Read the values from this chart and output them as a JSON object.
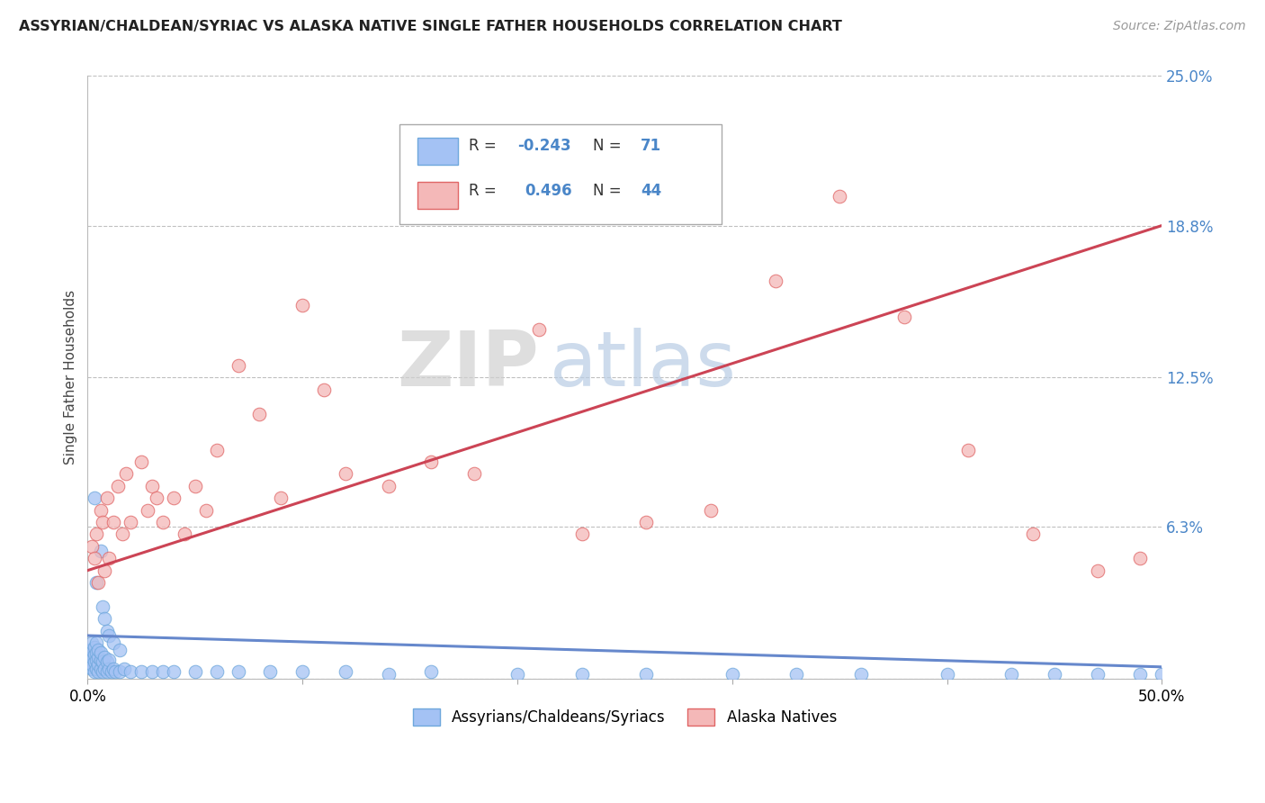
{
  "title": "ASSYRIAN/CHALDEAN/SYRIAC VS ALASKA NATIVE SINGLE FATHER HOUSEHOLDS CORRELATION CHART",
  "source": "Source: ZipAtlas.com",
  "ylabel": "Single Father Households",
  "xlim": [
    0.0,
    0.5
  ],
  "ylim": [
    0.0,
    0.25
  ],
  "ytick_labels_right": [
    "",
    "6.3%",
    "12.5%",
    "18.8%",
    "25.0%"
  ],
  "yticks_right": [
    0.0,
    0.063,
    0.125,
    0.188,
    0.25
  ],
  "legend_label1": "Assyrians/Chaldeans/Syriacs",
  "legend_label2": "Alaska Natives",
  "blue_color": "#a4c2f4",
  "pink_color": "#f4b8b8",
  "blue_edge_color": "#6fa8dc",
  "pink_edge_color": "#e06666",
  "blue_line_color": "#6688cc",
  "pink_line_color": "#cc4455",
  "watermark_color": "#c8d8ef",
  "background_color": "#ffffff",
  "grid_color": "#c0c0c0",
  "blue_line_y_start": 0.018,
  "blue_line_y_end": 0.005,
  "pink_line_y_start": 0.045,
  "pink_line_y_end": 0.188,
  "blue_scatter_x": [
    0.001,
    0.001,
    0.001,
    0.001,
    0.002,
    0.002,
    0.002,
    0.002,
    0.002,
    0.003,
    0.003,
    0.003,
    0.003,
    0.004,
    0.004,
    0.004,
    0.004,
    0.005,
    0.005,
    0.005,
    0.005,
    0.006,
    0.006,
    0.006,
    0.007,
    0.007,
    0.008,
    0.008,
    0.009,
    0.009,
    0.01,
    0.01,
    0.011,
    0.012,
    0.013,
    0.015,
    0.017,
    0.02,
    0.025,
    0.03,
    0.035,
    0.04,
    0.05,
    0.06,
    0.07,
    0.085,
    0.1,
    0.12,
    0.14,
    0.16,
    0.2,
    0.23,
    0.26,
    0.3,
    0.33,
    0.36,
    0.4,
    0.43,
    0.45,
    0.47,
    0.49,
    0.5,
    0.003,
    0.006,
    0.004,
    0.007,
    0.008,
    0.009,
    0.01,
    0.012,
    0.015
  ],
  "blue_scatter_y": [
    0.005,
    0.008,
    0.01,
    0.012,
    0.004,
    0.006,
    0.009,
    0.012,
    0.015,
    0.003,
    0.007,
    0.01,
    0.013,
    0.004,
    0.008,
    0.011,
    0.015,
    0.003,
    0.006,
    0.009,
    0.012,
    0.004,
    0.008,
    0.011,
    0.003,
    0.007,
    0.004,
    0.009,
    0.003,
    0.007,
    0.004,
    0.008,
    0.003,
    0.004,
    0.003,
    0.003,
    0.004,
    0.003,
    0.003,
    0.003,
    0.003,
    0.003,
    0.003,
    0.003,
    0.003,
    0.003,
    0.003,
    0.003,
    0.002,
    0.003,
    0.002,
    0.002,
    0.002,
    0.002,
    0.002,
    0.002,
    0.002,
    0.002,
    0.002,
    0.002,
    0.002,
    0.002,
    0.075,
    0.053,
    0.04,
    0.03,
    0.025,
    0.02,
    0.018,
    0.015,
    0.012
  ],
  "pink_scatter_x": [
    0.002,
    0.003,
    0.004,
    0.005,
    0.006,
    0.007,
    0.008,
    0.009,
    0.01,
    0.012,
    0.014,
    0.016,
    0.018,
    0.02,
    0.025,
    0.028,
    0.03,
    0.032,
    0.035,
    0.04,
    0.045,
    0.05,
    0.055,
    0.06,
    0.07,
    0.08,
    0.09,
    0.1,
    0.11,
    0.12,
    0.14,
    0.16,
    0.18,
    0.21,
    0.23,
    0.26,
    0.29,
    0.32,
    0.35,
    0.38,
    0.41,
    0.44,
    0.47,
    0.49
  ],
  "pink_scatter_y": [
    0.055,
    0.05,
    0.06,
    0.04,
    0.07,
    0.065,
    0.045,
    0.075,
    0.05,
    0.065,
    0.08,
    0.06,
    0.085,
    0.065,
    0.09,
    0.07,
    0.08,
    0.075,
    0.065,
    0.075,
    0.06,
    0.08,
    0.07,
    0.095,
    0.13,
    0.11,
    0.075,
    0.155,
    0.12,
    0.085,
    0.08,
    0.09,
    0.085,
    0.145,
    0.06,
    0.065,
    0.07,
    0.165,
    0.2,
    0.15,
    0.095,
    0.06,
    0.045,
    0.05
  ]
}
